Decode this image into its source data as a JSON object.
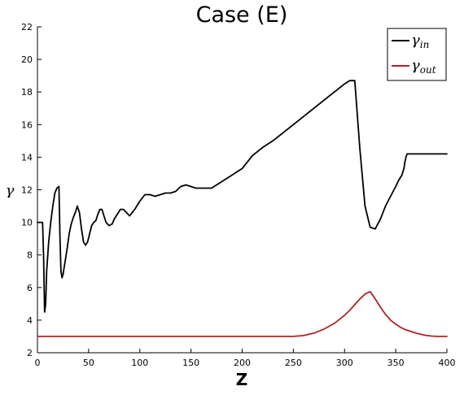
{
  "chart_data": {
    "type": "line",
    "title": "Case (E)",
    "xlabel": "Z",
    "ylabel": "γ",
    "xlim": [
      0,
      400
    ],
    "ylim": [
      2,
      22
    ],
    "xticks": [
      0,
      50,
      100,
      150,
      200,
      250,
      300,
      350,
      400
    ],
    "yticks": [
      2,
      4,
      6,
      8,
      10,
      12,
      14,
      16,
      18,
      20,
      22
    ],
    "grid": false,
    "legend_position": "top-right",
    "series": [
      {
        "name": "γ",
        "subscript": "in",
        "color": "#000000",
        "x": [
          0,
          3,
          5,
          6,
          7,
          8,
          9,
          11,
          13,
          15,
          17,
          19,
          21,
          22,
          23,
          24,
          25,
          27,
          29,
          31,
          33,
          35,
          37,
          39,
          41,
          43,
          45,
          47,
          49,
          51,
          53,
          55,
          57,
          59,
          61,
          63,
          65,
          67,
          70,
          73,
          75,
          78,
          81,
          84,
          87,
          90,
          95,
          100,
          105,
          110,
          115,
          120,
          125,
          130,
          135,
          140,
          145,
          150,
          155,
          160,
          165,
          170,
          175,
          180,
          185,
          190,
          195,
          200,
          205,
          210,
          220,
          230,
          240,
          250,
          260,
          270,
          280,
          290,
          300,
          305,
          310,
          315,
          320,
          325,
          330,
          335,
          340,
          345,
          350,
          353,
          356,
          358,
          359,
          360,
          361,
          362,
          363,
          364,
          366,
          368,
          370,
          375,
          380,
          385,
          390,
          395,
          400
        ],
        "y": [
          10.0,
          10.0,
          10.0,
          8.0,
          4.5,
          5.0,
          7.0,
          8.8,
          10.0,
          11.0,
          11.8,
          12.1,
          12.2,
          9.0,
          7.0,
          6.6,
          6.8,
          7.6,
          8.4,
          9.3,
          9.9,
          10.3,
          10.6,
          11.0,
          10.6,
          9.6,
          8.8,
          8.6,
          8.8,
          9.3,
          9.8,
          10.0,
          10.1,
          10.5,
          10.8,
          10.8,
          10.4,
          10.0,
          9.8,
          9.9,
          10.2,
          10.5,
          10.8,
          10.8,
          10.6,
          10.4,
          10.8,
          11.3,
          11.7,
          11.7,
          11.6,
          11.7,
          11.8,
          11.8,
          11.9,
          12.2,
          12.3,
          12.2,
          12.1,
          12.1,
          12.1,
          12.1,
          12.3,
          12.5,
          12.7,
          12.9,
          13.1,
          13.3,
          13.7,
          14.1,
          14.6,
          15.0,
          15.5,
          16.0,
          16.5,
          17.0,
          17.5,
          18.0,
          18.5,
          18.7,
          18.7,
          14.5,
          11.0,
          9.7,
          9.6,
          10.2,
          11.0,
          11.6,
          12.2,
          12.6,
          12.9,
          13.3,
          13.7,
          14.0,
          14.2,
          14.2,
          14.2,
          14.2,
          14.2,
          14.2,
          14.2,
          14.2,
          14.2,
          14.2,
          14.2,
          14.2,
          14.2
        ]
      },
      {
        "name": "γ",
        "subscript": "out",
        "color": "#b22222",
        "x": [
          0,
          50,
          100,
          150,
          200,
          250,
          260,
          270,
          280,
          290,
          300,
          305,
          310,
          315,
          320,
          325,
          330,
          335,
          340,
          345,
          350,
          355,
          360,
          365,
          370,
          375,
          380,
          385,
          390,
          395,
          400
        ],
        "y": [
          3.0,
          3.0,
          3.0,
          3.0,
          3.0,
          3.0,
          3.05,
          3.2,
          3.45,
          3.8,
          4.3,
          4.6,
          4.95,
          5.3,
          5.6,
          5.75,
          5.3,
          4.8,
          4.35,
          4.0,
          3.75,
          3.55,
          3.4,
          3.3,
          3.2,
          3.12,
          3.06,
          3.02,
          3.0,
          3.0,
          3.0
        ]
      }
    ]
  }
}
